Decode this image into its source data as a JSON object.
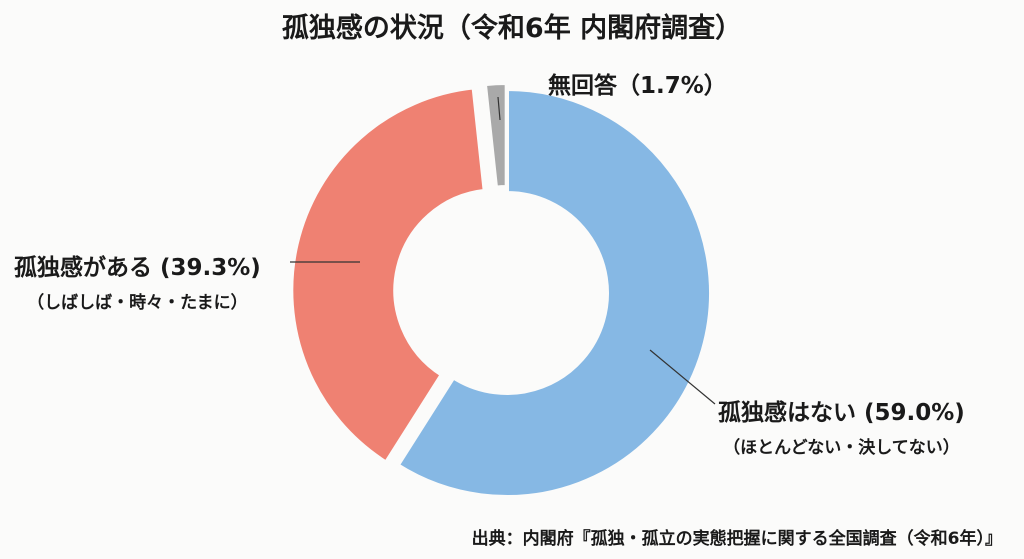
{
  "chart_data": {
    "type": "pie",
    "donut": true,
    "title": "孤独感の状況（令和6年 内閣府調査）",
    "slices": [
      {
        "label": "孤独感はない (59.0%)",
        "sublabel": "（ほとんどない・決してない）",
        "value": 59.0,
        "color": "#86b8e4"
      },
      {
        "label": "孤独感がある (39.3%)",
        "sublabel": "（しばしば・時々・たまに）",
        "value": 39.3,
        "color": "#ef8172"
      },
      {
        "label": "無回答（1.7%）",
        "sublabel": "",
        "value": 1.7,
        "color": "#a9a9a9"
      }
    ],
    "source": "出典：内閣府『孤独・孤立の実態把握に関する全国調査（令和6年）』"
  }
}
